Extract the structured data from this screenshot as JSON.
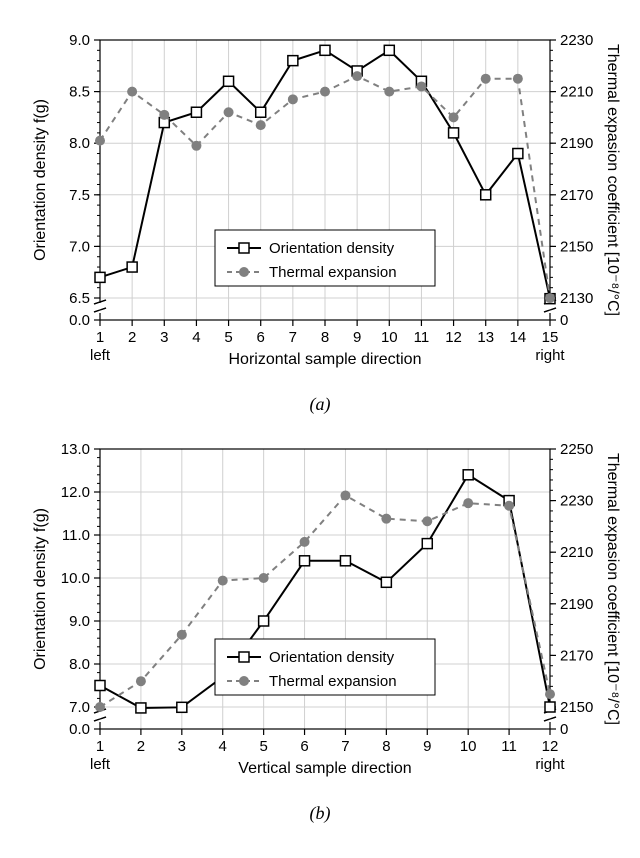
{
  "chart_a": {
    "type": "line-dual-axis",
    "x_label": "Horizontal sample direction",
    "caption": "(a)",
    "x_categories": [
      1,
      2,
      3,
      4,
      5,
      6,
      7,
      8,
      9,
      10,
      11,
      12,
      13,
      14,
      15
    ],
    "x_left_label": "left",
    "x_right_label": "right",
    "left_axis": {
      "label": "Orientation density f(g)",
      "ticks": [
        0.0,
        6.5,
        7.0,
        7.5,
        8.0,
        8.5,
        9.0
      ],
      "break_between": [
        0.0,
        6.5
      ],
      "minor_step": 0.1
    },
    "right_axis": {
      "label": "Thermal expasion coefficient [10⁻⁸/°C]",
      "ticks": [
        0,
        2130,
        2150,
        2170,
        2190,
        2210,
        2230
      ],
      "break_between": [
        0,
        2130
      ],
      "minor_step": 4
    },
    "series": [
      {
        "name": "Orientation density",
        "marker": "open-square",
        "color": "#000000",
        "dash": "solid",
        "line_width": 2,
        "y_axis": "left",
        "values": [
          6.7,
          6.8,
          8.2,
          8.3,
          8.6,
          8.3,
          8.8,
          8.9,
          8.7,
          8.9,
          8.6,
          8.1,
          7.5,
          7.9,
          6.3
        ]
      },
      {
        "name": "Thermal expansion",
        "marker": "filled-circle",
        "color": "#808080",
        "dash": "dashed",
        "line_width": 2,
        "y_axis": "right",
        "values": [
          2191,
          2210,
          2201,
          2189,
          2202,
          2197,
          2207,
          2210,
          2216,
          2210,
          2212,
          2200,
          2215,
          2215,
          2122
        ]
      }
    ],
    "legend_labels": [
      "Orientation density",
      "Thermal expansion"
    ],
    "background": "#ffffff",
    "grid_color": "#d0d0d0",
    "label_fontsize": 16,
    "tick_fontsize": 15
  },
  "chart_b": {
    "type": "line-dual-axis",
    "x_label": "Vertical sample direction",
    "caption": "(b)",
    "x_categories": [
      1,
      2,
      3,
      4,
      5,
      6,
      7,
      8,
      9,
      10,
      11,
      12
    ],
    "x_left_label": "left",
    "x_right_label": "right",
    "left_axis": {
      "label": "Orientation density f(g)",
      "ticks": [
        0.0,
        7.0,
        8.0,
        9.0,
        10.0,
        11.0,
        12.0,
        13.0
      ],
      "break_between": [
        0.0,
        7.0
      ],
      "minor_step": 0.2
    },
    "right_axis": {
      "label": "Thermal expasion coefficient [10⁻⁸/°C]",
      "ticks": [
        0,
        2150,
        2170,
        2190,
        2210,
        2230,
        2250
      ],
      "break_between": [
        0,
        2150
      ],
      "minor_step": 4
    },
    "series": [
      {
        "name": "Orientation density",
        "marker": "open-square",
        "color": "#000000",
        "dash": "solid",
        "line_width": 2,
        "y_axis": "left",
        "values": [
          7.5,
          6.7,
          6.9,
          7.7,
          9.0,
          10.4,
          10.4,
          9.9,
          10.8,
          12.4,
          11.8,
          7.0
        ]
      },
      {
        "name": "Thermal expansion",
        "marker": "filled-circle",
        "color": "#808080",
        "dash": "dashed",
        "line_width": 2,
        "y_axis": "right",
        "values": [
          2149,
          2160,
          2178,
          2199,
          2200,
          2214,
          2232,
          2223,
          2222,
          2229,
          2228,
          2155
        ]
      }
    ],
    "legend_labels": [
      "Orientation density",
      "Thermal expansion"
    ],
    "background": "#ffffff",
    "grid_color": "#d0d0d0",
    "label_fontsize": 16,
    "tick_fontsize": 15
  }
}
